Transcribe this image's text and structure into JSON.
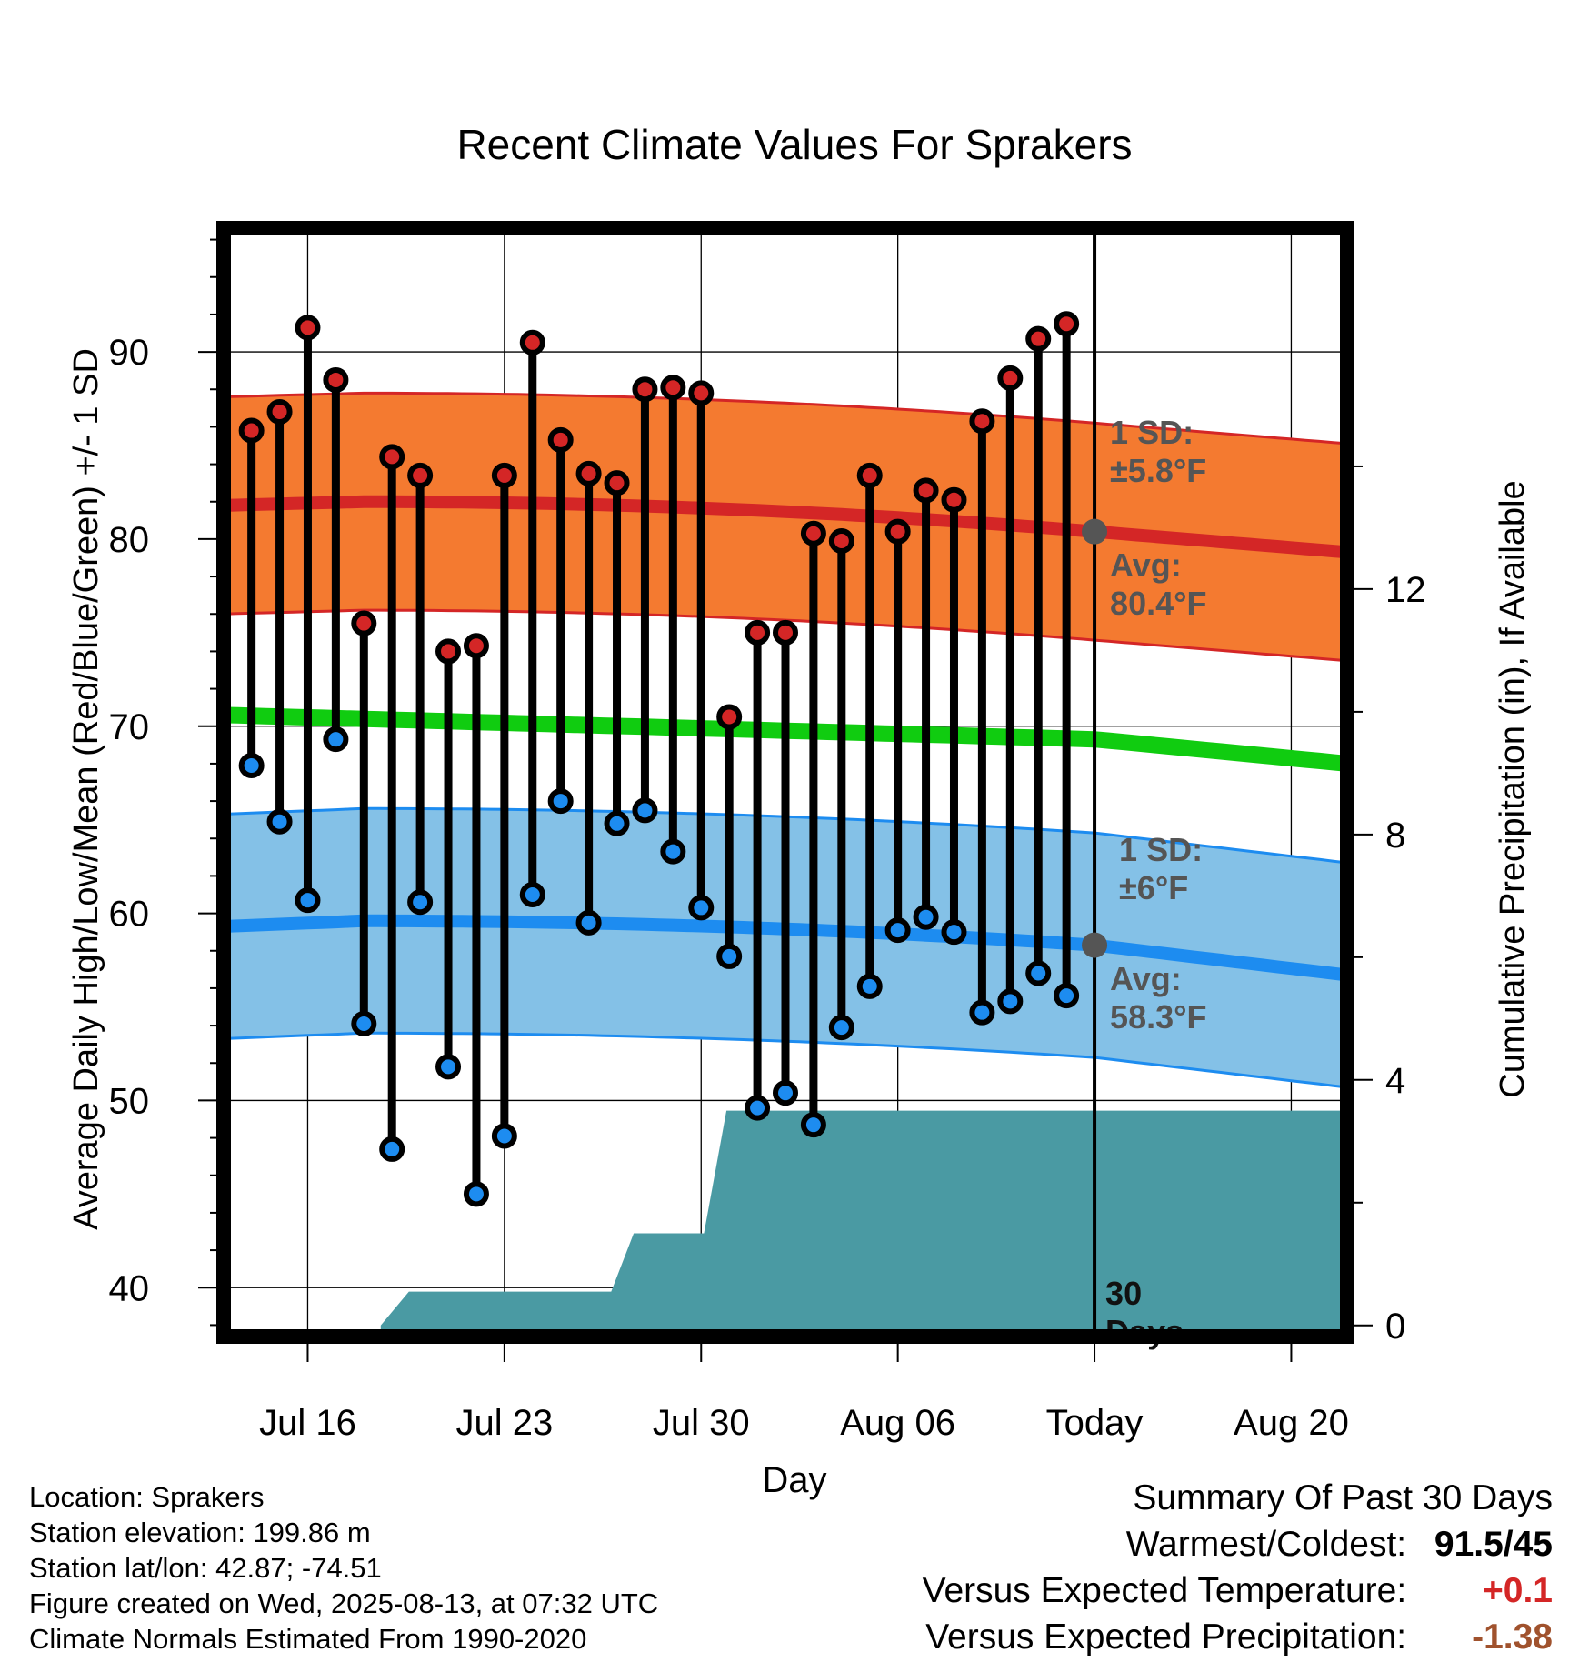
{
  "chart_data": {
    "type": "line",
    "title": "Recent Climate Values For Sprakers",
    "xlabel": "Day",
    "ylabel": "Average Daily High/Low/Mean (Red/Blue/Green) +/- 1 SD",
    "y2label": "Cumulative Precipitation (in), If Available",
    "ylim": [
      37,
      97
    ],
    "y2lim": [
      -0.3,
      18
    ],
    "y_ticks": [
      40,
      50,
      60,
      70,
      80,
      90
    ],
    "y2_ticks": [
      0,
      4,
      8,
      12
    ],
    "x_tick_labels": [
      {
        "day": 0,
        "label": "Jul 16"
      },
      {
        "day": 7,
        "label": "Jul 23"
      },
      {
        "day": 14,
        "label": "Jul 30"
      },
      {
        "day": 21,
        "label": "Aug 06"
      },
      {
        "day": 28,
        "label": "Today"
      },
      {
        "day": 35,
        "label": "Aug 20"
      }
    ],
    "x_range_days": [
      -3.25,
      37.25
    ],
    "today_day": 28,
    "dates": [
      "Jul 14",
      "Jul 15",
      "Jul 16",
      "Jul 17",
      "Jul 18",
      "Jul 19",
      "Jul 20",
      "Jul 21",
      "Jul 22",
      "Jul 23",
      "Jul 24",
      "Jul 25",
      "Jul 26",
      "Jul 27",
      "Jul 28",
      "Jul 29",
      "Jul 30",
      "Jul 31",
      "Aug 01",
      "Aug 02",
      "Aug 03",
      "Aug 04",
      "Aug 05",
      "Aug 06",
      "Aug 07",
      "Aug 08",
      "Aug 09",
      "Aug 10",
      "Aug 11",
      "Aug 12"
    ],
    "observed_highs": [
      85.8,
      86.8,
      91.3,
      88.5,
      75.5,
      84.4,
      83.4,
      74.0,
      74.3,
      83.4,
      90.5,
      85.3,
      83.5,
      83.0,
      88.0,
      88.1,
      87.8,
      70.5,
      75.0,
      75.0,
      80.3,
      79.9,
      83.4,
      80.4,
      82.6,
      82.1,
      86.3,
      88.6,
      90.7,
      91.5
    ],
    "observed_lows": [
      67.9,
      64.9,
      60.7,
      69.3,
      54.1,
      47.4,
      60.6,
      51.8,
      45.0,
      48.1,
      61.0,
      66.0,
      59.5,
      64.8,
      65.5,
      63.3,
      60.3,
      57.7,
      49.6,
      50.4,
      48.7,
      53.9,
      56.1,
      59.1,
      59.8,
      59.0,
      54.7,
      55.3,
      56.8,
      55.6
    ],
    "normal_high": {
      "start": 81.8,
      "peak": 82.0,
      "today": 80.4,
      "end": 79.3,
      "sd": 5.8
    },
    "normal_low": {
      "start": 59.3,
      "peak": 59.6,
      "today": 58.3,
      "end": 56.7,
      "sd": 6
    },
    "normal_mean": {
      "start": 70.6,
      "today": 69.3,
      "end": 68.0
    },
    "cumulative_precip": [
      {
        "day": 2.6,
        "value": 0
      },
      {
        "day": 3.6,
        "value": 0.55
      },
      {
        "day": 10.8,
        "value": 0.55
      },
      {
        "day": 11.6,
        "value": 1.5
      },
      {
        "day": 14.1,
        "value": 1.5
      },
      {
        "day": 14.9,
        "value": 3.5
      },
      {
        "day": 37.25,
        "value": 3.5
      }
    ],
    "annotations": {
      "high_sd": [
        "1 SD:",
        "±5.8°F"
      ],
      "high_avg": [
        "Avg:",
        "80.4°F"
      ],
      "low_sd": [
        "1 SD:",
        "±6°F"
      ],
      "low_avg": [
        "Avg:",
        "58.3°F"
      ],
      "days": [
        "30",
        "Days"
      ]
    },
    "colors": {
      "high_band": "#f47a30",
      "high_line": "#d42626",
      "low_band": "#84c1e7",
      "low_line": "#1d8cf0",
      "mean_line": "#10cc10",
      "precip": "#4a9aa3",
      "high_dot": "#d42626",
      "low_dot": "#1d8cf0",
      "annotation": "#555555"
    }
  },
  "footer": {
    "location": "Location: Sprakers",
    "elevation": "Station elevation: 199.86 m",
    "latlon": "Station lat/lon: 42.87; -74.51",
    "created": "Figure created on Wed, 2025-08-13, at 07:32 UTC",
    "normals": "Climate Normals Estimated From 1990-2020"
  },
  "summary": {
    "title": "Summary Of Past 30 Days",
    "warmest_label": "Warmest/Coldest:",
    "warmest_value": "91.5/45",
    "temp_label": "Versus Expected Temperature:",
    "temp_value": "+0.1",
    "temp_color": "#d42626",
    "precip_label": "Versus Expected Precipitation:",
    "precip_value": "-1.38",
    "precip_color": "#a0522d"
  }
}
